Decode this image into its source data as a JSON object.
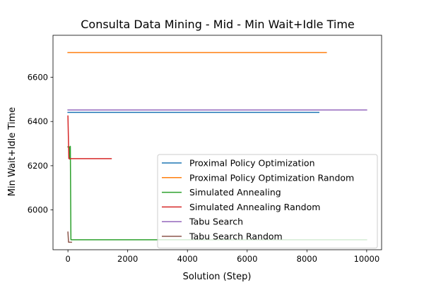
{
  "chart_data": {
    "type": "line",
    "title": "Consulta Data Mining - Mid - Min Wait+Idle Time",
    "xlabel": "Solution (Step)",
    "ylabel": "Min Wait+Idle Time",
    "xlim": [
      -500,
      10500
    ],
    "ylim": [
      5820,
      6790
    ],
    "xticks": [
      0,
      2000,
      4000,
      6000,
      8000,
      10000
    ],
    "yticks": [
      6000,
      6200,
      6400,
      6600
    ],
    "grid": false,
    "legend_position": "lower-right",
    "series": [
      {
        "name": "Proximal Policy Optimization",
        "color": "#1f77b4",
        "points": [
          [
            0,
            6441
          ],
          [
            8400,
            6441
          ]
        ]
      },
      {
        "name": "Proximal Policy Optimization Random",
        "color": "#ff7f0e",
        "points": [
          [
            0,
            6712
          ],
          [
            8650,
            6712
          ]
        ]
      },
      {
        "name": "Simulated Annealing",
        "color": "#2ca02c",
        "points": [
          [
            0,
            6285
          ],
          [
            50,
            6285
          ],
          [
            60,
            6230
          ],
          [
            70,
            6230
          ],
          [
            80,
            6288
          ],
          [
            100,
            5865
          ],
          [
            10000,
            5865
          ]
        ]
      },
      {
        "name": "Simulated Annealing Random",
        "color": "#d62728",
        "points": [
          [
            0,
            6425
          ],
          [
            30,
            6232
          ],
          [
            1450,
            6232
          ]
        ]
      },
      {
        "name": "Tabu Search",
        "color": "#9467bd",
        "points": [
          [
            0,
            6452
          ],
          [
            10000,
            6452
          ]
        ]
      },
      {
        "name": "Tabu Search Random",
        "color": "#8c564b",
        "points": [
          [
            0,
            5900
          ],
          [
            20,
            5854
          ],
          [
            120,
            5854
          ]
        ]
      }
    ]
  }
}
